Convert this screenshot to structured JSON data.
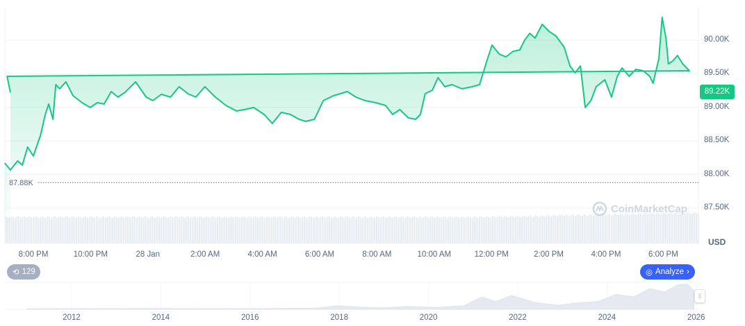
{
  "chart_data": {
    "type": "area",
    "currency_label": "USD",
    "current_price_label": "89.22K",
    "min_price_label": "87.88K",
    "min_price": 87880,
    "y_ticks": [
      "90.00K",
      "89.50K",
      "89.00K",
      "88.50K",
      "88.00K",
      "87.50K"
    ],
    "y_tick_values": [
      90000,
      89500,
      89000,
      88500,
      88000,
      87500
    ],
    "x_ticks": [
      "8:00 PM",
      "10:00 PM",
      "28 Jan",
      "2:00 AM",
      "4:00 AM",
      "6:00 AM",
      "8:00 AM",
      "10:00 AM",
      "12:00 PM",
      "2:00 PM",
      "4:00 PM",
      "6:00 PM"
    ],
    "grid": true,
    "colors": {
      "line": "#16c784",
      "volume": "#e3e7ee",
      "navigator": "#e6e9ef",
      "button": "#3861fb",
      "badge": "#a6b0c3"
    },
    "points": [
      [
        "19:00",
        88171
      ],
      [
        "19:12",
        88068
      ],
      [
        "19:27",
        88202
      ],
      [
        "19:37",
        88140
      ],
      [
        "19:48",
        88409
      ],
      [
        "20:00",
        88275
      ],
      [
        "20:15",
        88585
      ],
      [
        "20:25",
        88895
      ],
      [
        "20:32",
        89050
      ],
      [
        "20:41",
        88822
      ],
      [
        "20:47",
        89339
      ],
      [
        "20:55",
        89277
      ],
      [
        "21:08",
        89380
      ],
      [
        "21:23",
        89174
      ],
      [
        "21:42",
        89070
      ],
      [
        "21:59",
        88998
      ],
      [
        "22:14",
        89070
      ],
      [
        "22:28",
        89050
      ],
      [
        "22:43",
        89236
      ],
      [
        "22:57",
        89153
      ],
      [
        "23:12",
        89225
      ],
      [
        "23:34",
        89380
      ],
      [
        "23:56",
        89153
      ],
      [
        "00:10",
        89101
      ],
      [
        "00:28",
        89194
      ],
      [
        "00:47",
        89153
      ],
      [
        "01:05",
        89308
      ],
      [
        "01:23",
        89205
      ],
      [
        "01:40",
        89153
      ],
      [
        "01:59",
        89308
      ],
      [
        "02:21",
        89153
      ],
      [
        "02:43",
        89029
      ],
      [
        "03:05",
        88946
      ],
      [
        "03:22",
        88967
      ],
      [
        "03:41",
        88998
      ],
      [
        "04:03",
        88895
      ],
      [
        "04:20",
        88760
      ],
      [
        "04:39",
        88926
      ],
      [
        "04:58",
        88895
      ],
      [
        "05:16",
        88822
      ],
      [
        "05:30",
        88791
      ],
      [
        "05:48",
        88822
      ],
      [
        "06:07",
        89101
      ],
      [
        "06:28",
        89174
      ],
      [
        "06:43",
        89205
      ],
      [
        "06:57",
        89236
      ],
      [
        "07:15",
        89153
      ],
      [
        "07:34",
        89101
      ],
      [
        "07:56",
        89070
      ],
      [
        "08:17",
        89029
      ],
      [
        "08:32",
        88895
      ],
      [
        "08:47",
        88967
      ],
      [
        "09:05",
        88843
      ],
      [
        "09:20",
        88822
      ],
      [
        "09:30",
        88895
      ],
      [
        "09:40",
        89205
      ],
      [
        "09:55",
        89256
      ],
      [
        "10:07",
        89442
      ],
      [
        "10:21",
        89308
      ],
      [
        "10:36",
        89339
      ],
      [
        "10:57",
        89277
      ],
      [
        "11:19",
        89308
      ],
      [
        "11:34",
        89339
      ],
      [
        "11:48",
        89669
      ],
      [
        "12:00",
        89928
      ],
      [
        "12:15",
        89794
      ],
      [
        "12:29",
        89752
      ],
      [
        "12:44",
        89835
      ],
      [
        "12:58",
        89855
      ],
      [
        "13:08",
        90000
      ],
      [
        "13:19",
        90103
      ],
      [
        "13:30",
        90031
      ],
      [
        "13:45",
        90238
      ],
      [
        "13:59",
        90134
      ],
      [
        "14:14",
        90062
      ],
      [
        "14:31",
        89897
      ],
      [
        "14:43",
        89618
      ],
      [
        "14:54",
        89514
      ],
      [
        "15:05",
        89618
      ],
      [
        "15:15",
        88998
      ],
      [
        "15:27",
        89101
      ],
      [
        "15:38",
        89308
      ],
      [
        "15:56",
        89411
      ],
      [
        "16:10",
        89153
      ],
      [
        "16:22",
        89463
      ],
      [
        "16:32",
        89587
      ],
      [
        "16:47",
        89463
      ],
      [
        "17:01",
        89566
      ],
      [
        "17:16",
        89545
      ],
      [
        "17:30",
        89463
      ],
      [
        "17:37",
        89360
      ],
      [
        "17:49",
        89721
      ],
      [
        "17:56",
        90341
      ],
      [
        "18:04",
        90031
      ],
      [
        "18:09",
        89649
      ],
      [
        "18:18",
        89690
      ],
      [
        "18:28",
        89773
      ],
      [
        "18:39",
        89649
      ],
      [
        "18:53",
        89545
      ],
      [
        "19:05",
        89463
      ],
      [
        "19:12",
        89220
      ]
    ],
    "navigator": {
      "x_ticks": [
        "2012",
        "2014",
        "2016",
        "2018",
        "2020",
        "2022",
        "2024",
        "2026"
      ],
      "points": [
        [
          2011.0,
          0
        ],
        [
          2013.9,
          1
        ],
        [
          2016.0,
          0.5
        ],
        [
          2017.5,
          3
        ],
        [
          2017.95,
          15
        ],
        [
          2018.5,
          7
        ],
        [
          2019.0,
          4
        ],
        [
          2019.5,
          11
        ],
        [
          2020.2,
          6
        ],
        [
          2020.8,
          15
        ],
        [
          2021.2,
          58
        ],
        [
          2021.5,
          35
        ],
        [
          2021.85,
          65
        ],
        [
          2022.4,
          30
        ],
        [
          2022.9,
          17
        ],
        [
          2023.3,
          28
        ],
        [
          2023.8,
          35
        ],
        [
          2024.2,
          70
        ],
        [
          2024.6,
          58
        ],
        [
          2024.95,
          98
        ],
        [
          2025.3,
          82
        ],
        [
          2025.6,
          118
        ],
        [
          2025.8,
          120
        ],
        [
          2025.95,
          89
        ]
      ],
      "y_max": 126
    }
  },
  "watermark": "CoinMarketCap",
  "controls": {
    "history_count": "129",
    "analyze_label": "Analyze"
  }
}
